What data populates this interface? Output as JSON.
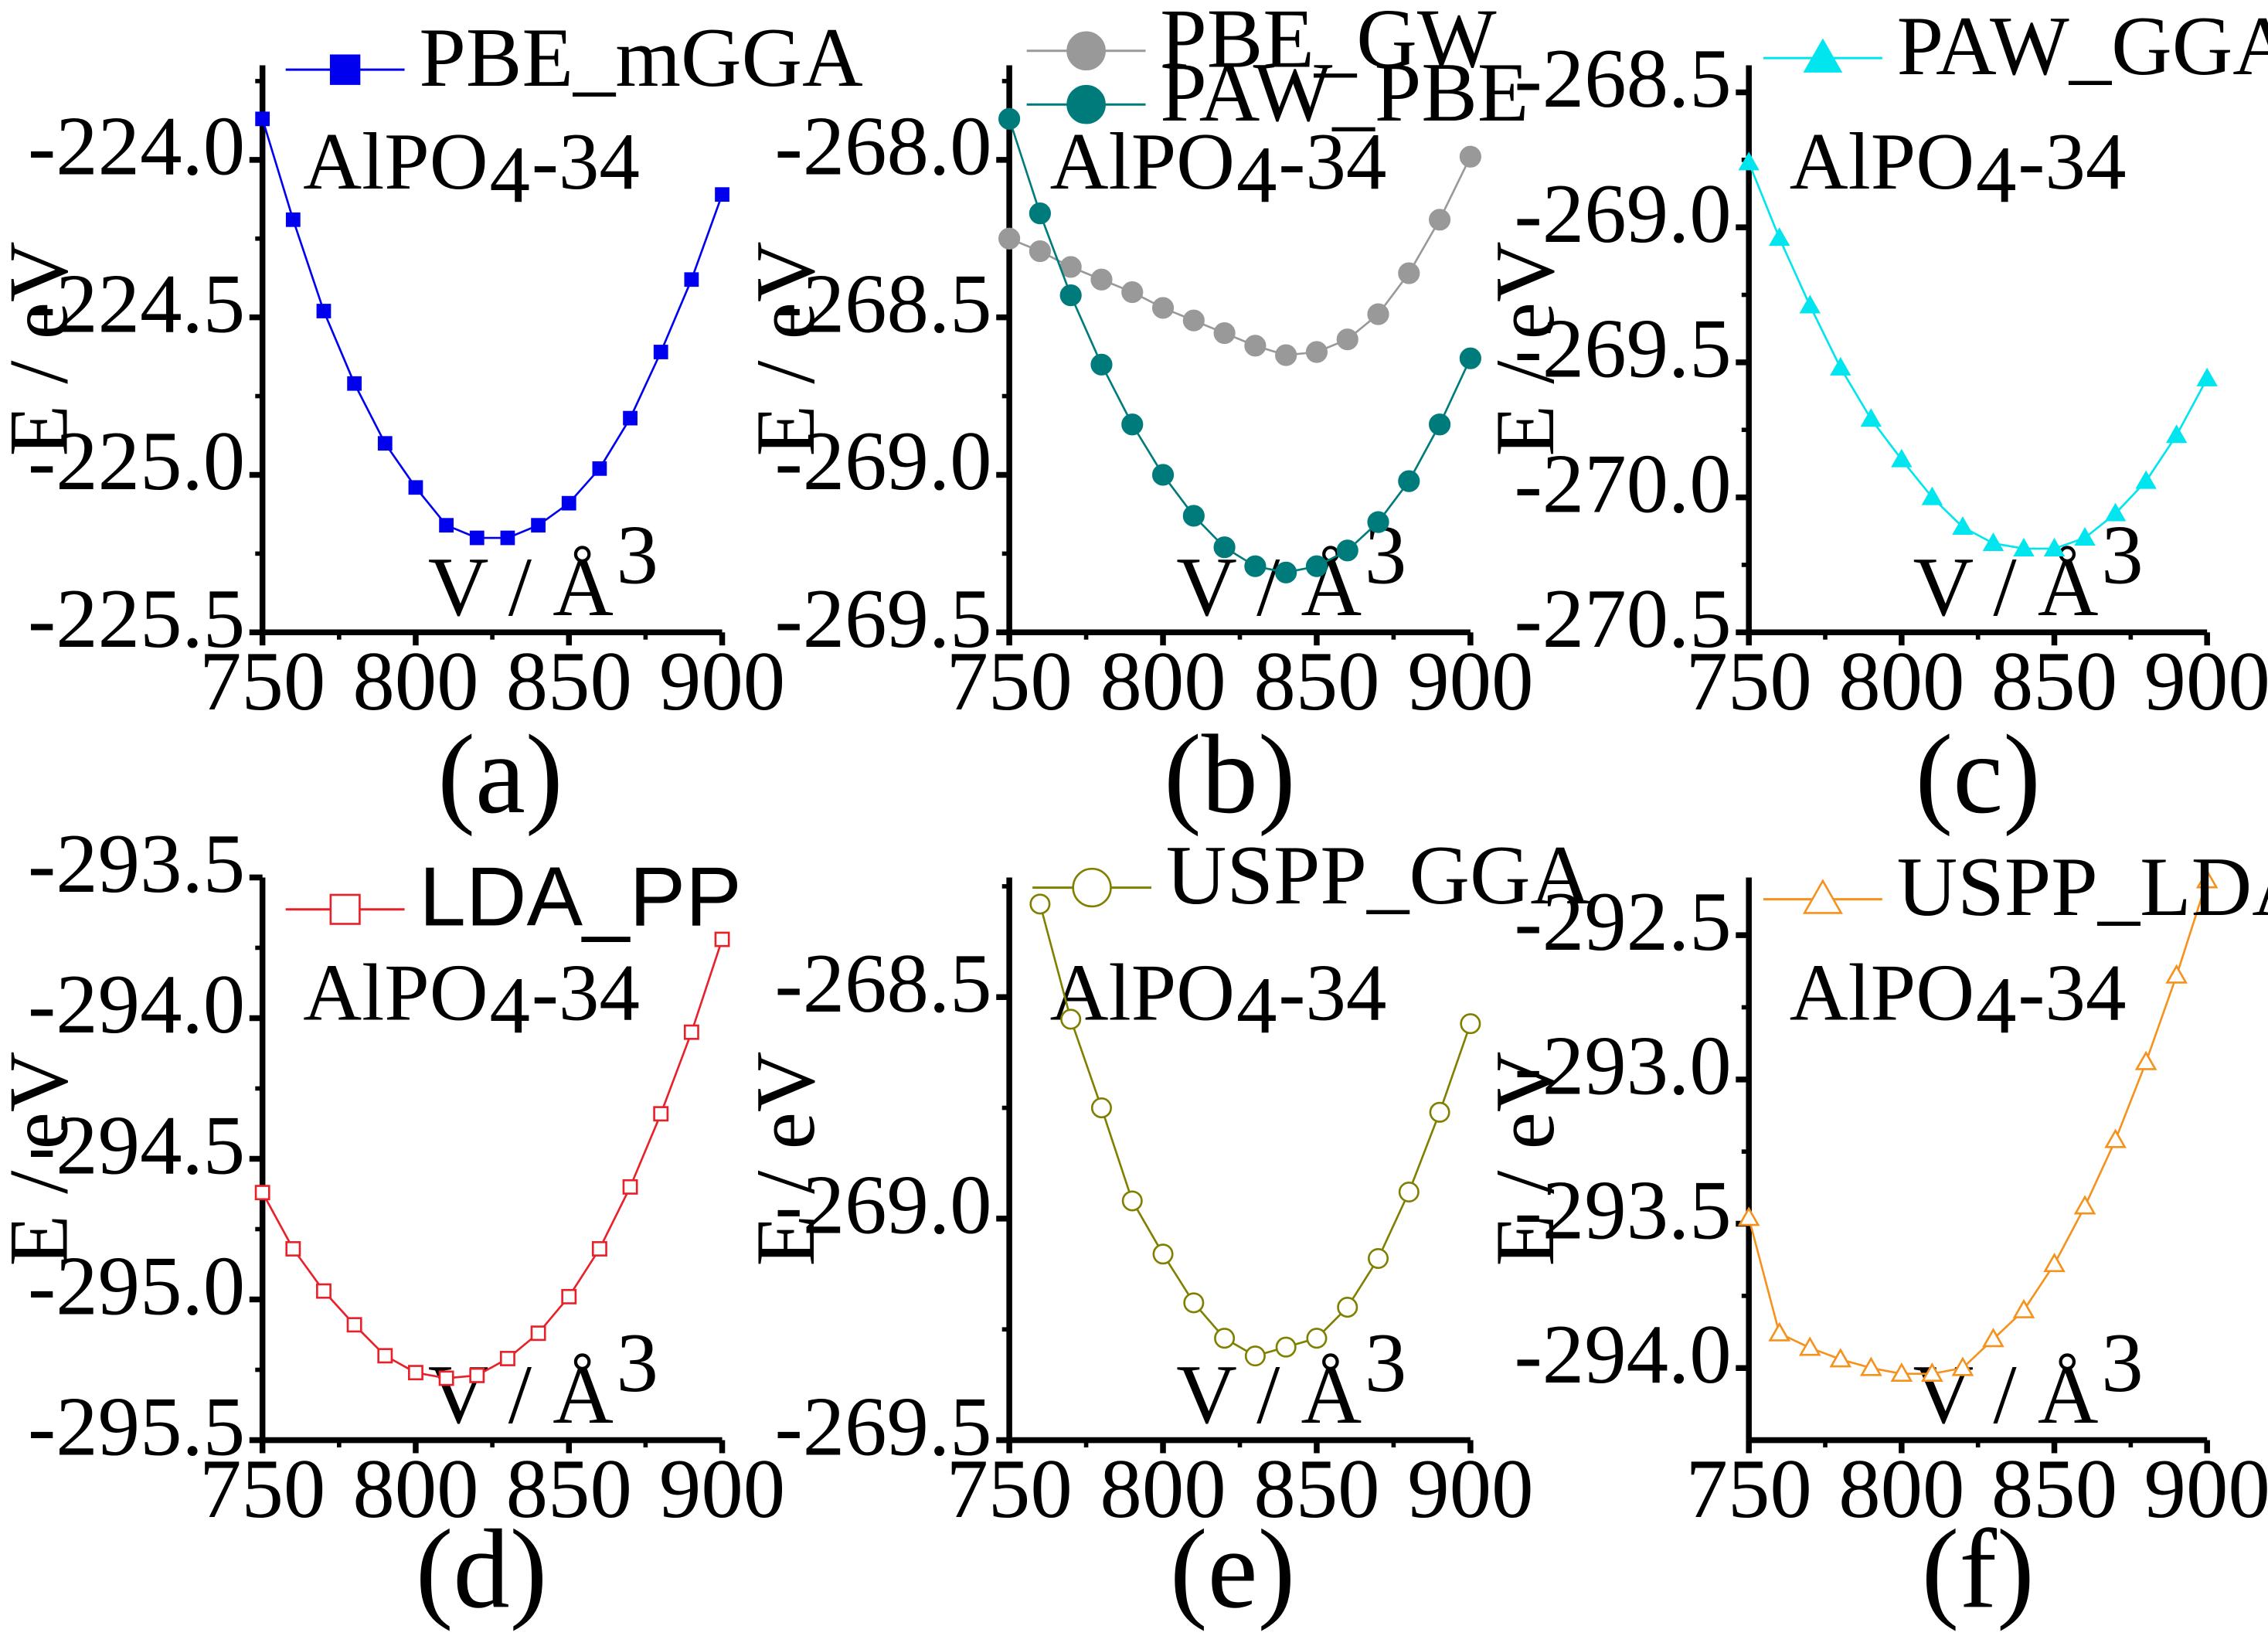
{
  "figure": {
    "inset_label": {
      "main": "AlPO",
      "sub": "4",
      "tail": "-34"
    },
    "axes_text": {
      "ylabel": "E / eV",
      "xlabel_main": "V / Å",
      "xlabel_sup": "3"
    }
  },
  "chart_data": [
    {
      "panel": "(a)",
      "type": "line",
      "xlabel": "V / Å³",
      "ylabel": "E / eV",
      "xlim": [
        750,
        900
      ],
      "ylim": [
        -225.5,
        -223.7
      ],
      "xticks": [
        750,
        800,
        850,
        900
      ],
      "yticks": [
        -225.5,
        -225.0,
        -224.5,
        -224.0
      ],
      "ytick_labels": [
        "-225.5",
        "-225.0",
        "-224.5",
        "-224.0"
      ],
      "annotation": "AlPO4-34",
      "series": [
        {
          "name": "PBE_mGGA",
          "color": "#0000ee",
          "marker": "square-filled",
          "x": [
            750,
            760,
            770,
            780,
            790,
            800,
            810,
            820,
            830,
            840,
            850,
            860,
            870,
            880,
            890,
            900
          ],
          "values": [
            -223.87,
            -224.19,
            -224.48,
            -224.71,
            -224.9,
            -225.04,
            -225.16,
            -225.2,
            -225.2,
            -225.16,
            -225.09,
            -224.98,
            -224.82,
            -224.61,
            -224.38,
            -224.11
          ]
        }
      ]
    },
    {
      "panel": "(b)",
      "type": "line",
      "xlabel": "V / Å³",
      "ylabel": "E / eV",
      "xlim": [
        750,
        900
      ],
      "ylim": [
        -269.5,
        -267.7
      ],
      "xticks": [
        750,
        800,
        850,
        900
      ],
      "yticks": [
        -269.5,
        -269.0,
        -268.5,
        -268.0
      ],
      "ytick_labels": [
        "-269.5",
        "-269.0",
        "-268.5",
        "-268.0"
      ],
      "annotation": "AlPO4-34",
      "series": [
        {
          "name": "PBE_GW",
          "color": "#999999",
          "marker": "circle-filled",
          "x": [
            750,
            760,
            770,
            780,
            790,
            800,
            810,
            820,
            830,
            840,
            850,
            860,
            870,
            880,
            890,
            900
          ],
          "values": [
            -268.25,
            -268.29,
            -268.34,
            -268.38,
            -268.42,
            -268.47,
            -268.51,
            -268.55,
            -268.59,
            -268.62,
            -268.61,
            -268.57,
            -268.49,
            -268.36,
            -268.19,
            -267.99
          ]
        },
        {
          "name": "PAW_PBE",
          "color": "#007b7b",
          "marker": "circle-filled",
          "x": [
            750,
            760,
            770,
            780,
            790,
            800,
            810,
            820,
            830,
            840,
            850,
            860,
            870,
            880,
            890,
            900
          ],
          "values": [
            -267.87,
            -268.17,
            -268.43,
            -268.65,
            -268.84,
            -269.0,
            -269.13,
            -269.23,
            -269.29,
            -269.31,
            -269.29,
            -269.24,
            -269.15,
            -269.02,
            -268.84,
            -268.63
          ]
        }
      ]
    },
    {
      "panel": "(c)",
      "type": "line",
      "xlabel": "V / Å³",
      "ylabel": "E / eV",
      "xlim": [
        750,
        900
      ],
      "ylim": [
        -270.5,
        -268.4
      ],
      "xticks": [
        750,
        800,
        850,
        900
      ],
      "yticks": [
        -270.5,
        -270.0,
        -269.5,
        -269.0,
        -268.5
      ],
      "ytick_labels": [
        "-270.5",
        "-270.0",
        "-269.5",
        "-269.0",
        "-268.5"
      ],
      "annotation": "AlPO4-34",
      "series": [
        {
          "name": "PAW_GGA",
          "color": "#00e5ee",
          "marker": "triangle-filled",
          "x": [
            750,
            760,
            770,
            780,
            790,
            800,
            810,
            820,
            830,
            840,
            850,
            860,
            870,
            880,
            890,
            900
          ],
          "values": [
            -268.76,
            -269.04,
            -269.29,
            -269.52,
            -269.71,
            -269.86,
            -270.0,
            -270.11,
            -270.17,
            -270.19,
            -270.19,
            -270.15,
            -270.06,
            -269.94,
            -269.77,
            -269.56
          ]
        }
      ]
    },
    {
      "panel": "(d)",
      "type": "line",
      "xlabel": "V / Å³",
      "ylabel": "E / eV",
      "xlim": [
        750,
        900
      ],
      "ylim": [
        -295.5,
        -293.5
      ],
      "xticks": [
        750,
        800,
        850,
        900
      ],
      "yticks": [
        -295.5,
        -295.0,
        -294.5,
        -294.0,
        -293.5
      ],
      "ytick_labels": [
        "-295.5",
        "-295.0",
        "-294.5",
        "-294.0",
        "-293.5"
      ],
      "annotation": "AlPO4-34",
      "series": [
        {
          "name": "LDA_PP",
          "color": "#e8202a",
          "marker": "square-open",
          "x": [
            750,
            760,
            770,
            780,
            790,
            800,
            810,
            820,
            830,
            840,
            850,
            860,
            870,
            880,
            890,
            900
          ],
          "values": [
            -294.62,
            -294.82,
            -294.97,
            -295.09,
            -295.2,
            -295.26,
            -295.28,
            -295.27,
            -295.21,
            -295.12,
            -294.99,
            -294.82,
            -294.6,
            -294.34,
            -294.05,
            -293.72
          ]
        }
      ]
    },
    {
      "panel": "(e)",
      "type": "line",
      "xlabel": "V / Å³",
      "ylabel": "E / eV",
      "xlim": [
        750,
        900
      ],
      "ylim": [
        -269.5,
        -268.23
      ],
      "xticks": [
        750,
        800,
        850,
        900
      ],
      "yticks": [
        -269.5,
        -269.0,
        -268.5
      ],
      "ytick_labels": [
        "-269.5",
        "-269.0",
        "-268.5"
      ],
      "annotation": "AlPO4-34",
      "series": [
        {
          "name": "USPP_GGA",
          "color": "#7f7f00",
          "marker": "circle-open",
          "x": [
            760,
            770,
            780,
            790,
            800,
            810,
            820,
            830,
            840,
            850,
            860,
            870,
            880,
            890,
            900
          ],
          "values": [
            -268.29,
            -268.55,
            -268.75,
            -268.96,
            -269.08,
            -269.19,
            -269.27,
            -269.31,
            -269.29,
            -269.27,
            -269.2,
            -269.09,
            -268.94,
            -268.76,
            -268.56
          ]
        }
      ]
    },
    {
      "panel": "(f)",
      "type": "line",
      "xlabel": "V / Å³",
      "ylabel": "E / eV",
      "xlim": [
        750,
        900
      ],
      "ylim": [
        -294.25,
        -292.3
      ],
      "xticks": [
        750,
        800,
        850,
        900
      ],
      "yticks": [
        -294.0,
        -293.5,
        -293.0,
        -292.5
      ],
      "ytick_labels": [
        "-294.0",
        "-293.5",
        "-293.0",
        "-292.5"
      ],
      "annotation": "AlPO4-34",
      "series": [
        {
          "name": "USPP_LDA",
          "color": "#f5921e",
          "marker": "triangle-open",
          "x": [
            750,
            760,
            770,
            780,
            790,
            800,
            810,
            820,
            830,
            840,
            850,
            860,
            870,
            880,
            890,
            900
          ],
          "values": [
            -293.48,
            -293.88,
            -293.93,
            -293.97,
            -294.0,
            -294.02,
            -294.02,
            -294.0,
            -293.9,
            -293.8,
            -293.64,
            -293.44,
            -293.21,
            -292.94,
            -292.64,
            -292.31
          ]
        }
      ]
    }
  ]
}
